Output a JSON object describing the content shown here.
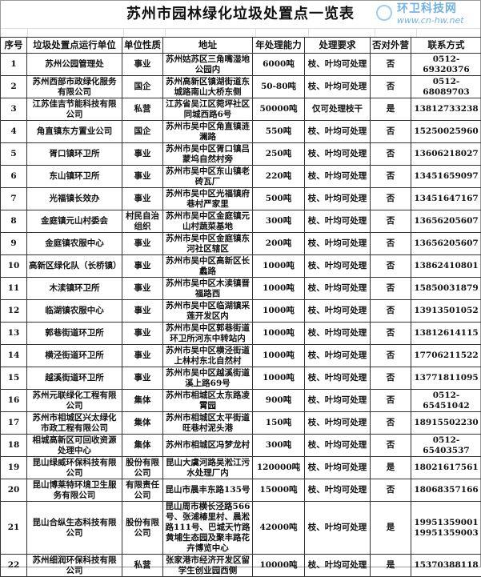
{
  "title": "苏州市园林绿化垃圾处置点一览表",
  "columns": [
    "序号",
    "垃圾处置点运行单位",
    "单位性质",
    "地址",
    "年处理能力",
    "处理要求",
    "否对外营",
    "联系方式"
  ],
  "rows": [
    [
      "1",
      "苏州公园管理处",
      "事业",
      "苏州姑苏区三角嘴湿地公园内",
      "6000吨",
      "枝、叶均可处理",
      "否",
      "0512-69320376"
    ],
    [
      "2",
      "苏州西部市政绿化服务有限公司",
      "国企",
      "苏州高新区镇湖街道东城路南山大桥东侧",
      "50-80吨",
      "枝、叶均可处理",
      "否",
      "0512-68089703"
    ],
    [
      "3",
      "江苏佳吉节能科技有限公司",
      "私营",
      "江苏省吴江区菀坪社区同城西路6号",
      "50000吨",
      "仅可处理枝干",
      "是",
      "13812733238"
    ],
    [
      "4",
      "角直镇东方置业公司",
      "国企",
      "苏州市吴中区角直镇涟澜路",
      "550吨",
      "枝、叶均可处理",
      "否",
      "15250025960"
    ],
    [
      "5",
      "胥口镇环卫所",
      "事业",
      "苏州市吴中区胥口镇吕蒙坞自然村旁",
      "250吨",
      "枝、叶均可处理",
      "否",
      "13606218027"
    ],
    [
      "6",
      "东山镇环卫所",
      "事业",
      "苏州市吴中区东山镇老砖瓦厂",
      "220吨",
      "枝、叶均可处理",
      "否",
      "13451659097"
    ],
    [
      "7",
      "光福镇长效办",
      "事业",
      "苏州市吴中区光福镇府巷村严家里",
      "500吨",
      "枝、叶均可处理",
      "否",
      "13451647167"
    ],
    [
      "8",
      "金庭镇元山村委会",
      "村民自治组织",
      "苏州市吴中区金庭镇元山村蔬菜基地",
      "300吨",
      "枝、叶均可处理",
      "否",
      "13656205607"
    ],
    [
      "9",
      "金庭镇农服中心",
      "事业",
      "苏州市吴中区金庭镇东河社区辖区",
      "200吨",
      "枝、叶均可处理",
      "否",
      "13656205607"
    ],
    [
      "10",
      "高新区绿化队（长桥镇）",
      "事业",
      "苏州市吴中区高新区长蠡路",
      "1000吨",
      "枝、叶均可处理",
      "否",
      "13862410801"
    ],
    [
      "11",
      "木渎镇环卫所",
      "事业",
      "苏州市吴中区木渎镇晋福路西",
      "1000吨",
      "枝、叶均可处理",
      "否",
      "15850031879"
    ],
    [
      "12",
      "临湖镇农服中心",
      "事业",
      "苏州市吴中区临湖镇采莲开发区内",
      "1000吨",
      "枝、叶均可处理",
      "否",
      "13913501052"
    ],
    [
      "13",
      "郭巷街道环卫所",
      "事业",
      "苏州市吴中区郭巷街道环卫所河东中转站内",
      "1000吨",
      "枝、叶均可处理",
      "否",
      "13812614115"
    ],
    [
      "14",
      "横泾街道环卫所",
      "事业",
      "苏州市吴中区横泾街道上林村东北自然村",
      "1000吨",
      "枝、叶均可处理",
      "否",
      "17706211522"
    ],
    [
      "15",
      "越溪街道环卫所",
      "事业",
      "苏州市吴中区越溪街道溪上路69号",
      "1000吨",
      "枝、叶均可处理",
      "否",
      "13771811095"
    ],
    [
      "16",
      "苏州元联绿化工程有限公司",
      "集体",
      "苏州市相城区太东路凌霄园",
      "900吨",
      "枝、叶均可处理",
      "否",
      "0512-65451042"
    ],
    [
      "17",
      "苏州市相城区兴太绿化市政工程有限公司",
      "集体",
      "苏州市相城区太平街道旺巷村泥头港",
      "150吨",
      "枝、叶均可处理",
      "否",
      "18915502230"
    ],
    [
      "18",
      "相城高新区可回收资源处理中心",
      "集体",
      "苏州市相城区冯梦龙村",
      "300吨",
      "枝、叶均可处理",
      "否",
      "0512-65403537"
    ],
    [
      "19",
      "昆山绿威环保科技有限公司",
      "股份有限公司",
      "昆山大虞河路吴淞江污水处理厂内",
      "120000吨",
      "枝、叶均可处理",
      "是",
      "18021617561"
    ],
    [
      "20",
      "昆山博莱特环境卫生服务有限公司",
      "有限责任公司",
      "昆山市晨丰东路135号",
      "15000吨",
      "枝、叶均可处理",
      "否",
      "18068357166"
    ],
    [
      "21",
      "昆山合纵生态科技有限公司",
      "股份有限公司",
      "昆山周市横长泾路566号、张浦椿里村、晨淞路111号、巴城天竹路黄埔生态园及聚丰路花卉博览中心",
      "42000吨",
      "枝、叶均可处理",
      "是",
      "19951359001 19951359003"
    ],
    [
      "22",
      "苏州细润环保科技有限公司",
      "私营",
      "张家港市经济开发区留学生创业园西侧",
      "10000吨",
      "枝、叶均可处理",
      "是",
      "15370388118"
    ]
  ],
  "watermark": {
    "name": "环卫科技网",
    "url": "www.cn-hw.net",
    "color": "#4a9fd8"
  }
}
